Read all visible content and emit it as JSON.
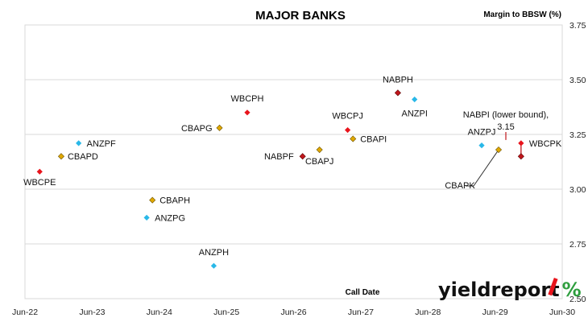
{
  "chart_data": {
    "type": "scatter",
    "title": "MAJOR BANKS",
    "ylabel": "Margin to BBSW (%)",
    "xlabel": "Call Date",
    "ylim": [
      2.5,
      3.75
    ],
    "yticks": [
      "2.50",
      "2.75",
      "3.00",
      "3.25",
      "3.50",
      "3.75"
    ],
    "xticks": [
      "Jun-22",
      "Jun-23",
      "Jun-24",
      "Jun-25",
      "Jun-26",
      "Jun-27",
      "Jun-28",
      "Jun-29",
      "Jun-30"
    ],
    "grid": "horizontal",
    "y_axis_side": "right",
    "colors": {
      "WBC": "#e8141c",
      "ANZ": "#29b8e8",
      "CBA": "#e0a800",
      "NAB": "#c0161c"
    },
    "points": [
      {
        "label": "WBCPE",
        "bank": "WBC",
        "date": "2022-08-20",
        "y": 3.08
      },
      {
        "label": "CBAPD",
        "bank": "CBA",
        "date": "2022-12-15",
        "y": 3.15
      },
      {
        "label": "ANZPF",
        "bank": "ANZ",
        "date": "2023-03-20",
        "y": 3.21
      },
      {
        "label": "ANZPG",
        "bank": "ANZ",
        "date": "2024-03-24",
        "y": 2.87
      },
      {
        "label": "CBAPH",
        "bank": "CBA",
        "date": "2024-04-24",
        "y": 2.95
      },
      {
        "label": "CBAPG",
        "bank": "CBA",
        "date": "2025-04-24",
        "y": 3.28
      },
      {
        "label": "ANZPH",
        "bank": "ANZ",
        "date": "2025-03-24",
        "y": 2.65
      },
      {
        "label": "WBCPH",
        "bank": "WBC",
        "date": "2025-09-22",
        "y": 3.35
      },
      {
        "label": "NABPF",
        "bank": "NAB",
        "date": "2026-07-20",
        "y": 3.15
      },
      {
        "label": "CBAPJ",
        "bank": "CBA",
        "date": "2026-10-20",
        "y": 3.18
      },
      {
        "label": "WBCPJ",
        "bank": "WBC",
        "date": "2027-03-22",
        "y": 3.27
      },
      {
        "label": "CBAPI",
        "bank": "CBA",
        "date": "2027-04-20",
        "y": 3.23
      },
      {
        "label": "NABPH",
        "bank": "NAB",
        "date": "2027-12-20",
        "y": 3.44
      },
      {
        "label": "ANZPI",
        "bank": "ANZ",
        "date": "2028-03-20",
        "y": 3.41
      },
      {
        "label": "ANZPJ",
        "bank": "ANZ",
        "date": "2029-03-20",
        "y": 3.2
      },
      {
        "label": "CBAPK",
        "bank": "CBA",
        "date": "2029-06-20",
        "y": 3.18
      },
      {
        "label": "WBCPK",
        "bank": "WBC",
        "date": "2029-10-20",
        "y": 3.21
      },
      {
        "label": "NABPI",
        "bank": "NAB",
        "date": "2029-10-20",
        "y": 3.15
      }
    ],
    "annotations": [
      {
        "text": "NABPI (lower bound),",
        "line2": "3.15",
        "target": "NABPI"
      }
    ]
  },
  "branding": {
    "logo_word": "yieldreport",
    "logo_symbol": "%"
  }
}
